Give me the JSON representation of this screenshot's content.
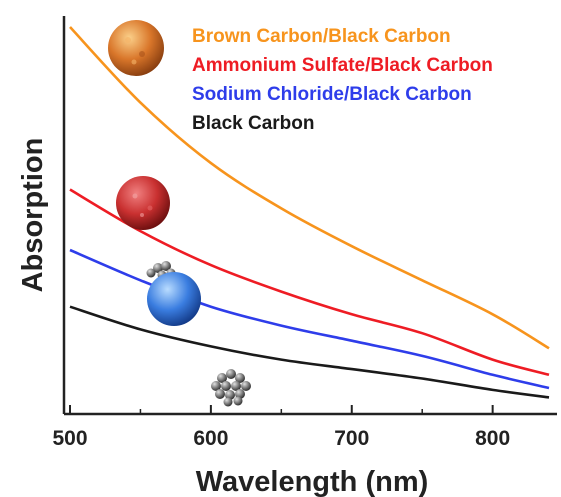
{
  "chart_data": {
    "type": "line",
    "title": "",
    "xlabel": "Wavelength (nm)",
    "ylabel": "Absorption",
    "xlim": [
      500,
      840
    ],
    "ylim": [
      0,
      1
    ],
    "x_ticks": [
      "500",
      "600",
      "700",
      "800"
    ],
    "x_tick_values": [
      500,
      600,
      700,
      800
    ],
    "y_ticks_labeled": false,
    "grid": false,
    "legend_position": "top-right",
    "series": [
      {
        "name": "Brown Carbon/Black Carbon",
        "color": "#f7941d",
        "x": [
          500,
          550,
          600,
          650,
          700,
          750,
          800,
          840
        ],
        "y": [
          1.0,
          0.8,
          0.64,
          0.52,
          0.42,
          0.33,
          0.24,
          0.15
        ]
      },
      {
        "name": "Ammonium Sulfate/Black Carbon",
        "color": "#ee1c24",
        "x": [
          500,
          550,
          600,
          650,
          700,
          750,
          800,
          840
        ],
        "y": [
          0.57,
          0.46,
          0.37,
          0.3,
          0.24,
          0.19,
          0.12,
          0.08
        ]
      },
      {
        "name": "Sodium Chloride/Black Carbon",
        "color": "#2e3dea",
        "x": [
          500,
          550,
          600,
          650,
          700,
          750,
          800,
          840
        ],
        "y": [
          0.41,
          0.33,
          0.26,
          0.21,
          0.17,
          0.13,
          0.08,
          0.045
        ]
      },
      {
        "name": "Black Carbon",
        "color": "#1a1a1a",
        "x": [
          500,
          550,
          600,
          650,
          700,
          750,
          800,
          840
        ],
        "y": [
          0.26,
          0.2,
          0.155,
          0.12,
          0.095,
          0.07,
          0.04,
          0.02
        ]
      }
    ],
    "decorations": [
      {
        "name": "brown-carbon-sphere-icon",
        "color": "#d9762a"
      },
      {
        "name": "ammonium-sulfate-sphere-icon",
        "color": "#c93030"
      },
      {
        "name": "sodium-chloride-sphere-icon",
        "color": "#3a7de0"
      },
      {
        "name": "black-carbon-aggregate-icon",
        "color": "#555555"
      }
    ]
  }
}
